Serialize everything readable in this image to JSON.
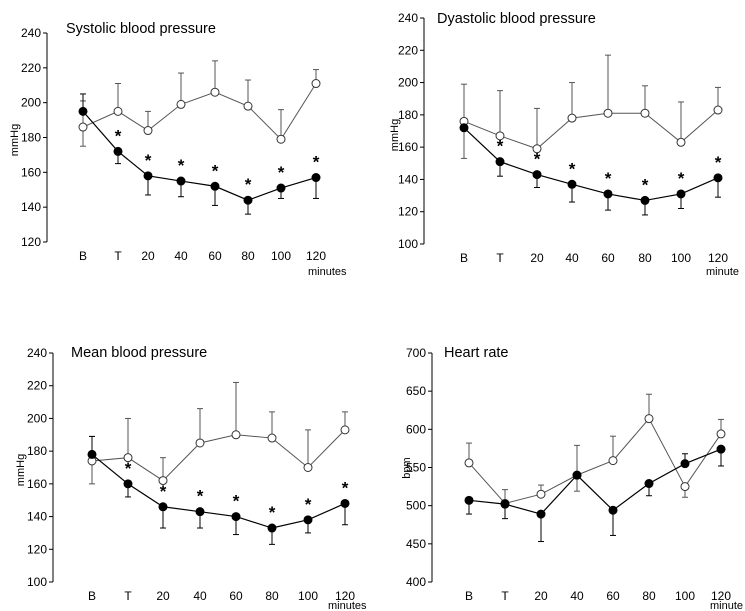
{
  "chart_data": [
    {
      "type": "line",
      "title": "Systolic blood pressure",
      "ylabel": "mmHg",
      "x_unit": "minutes",
      "categories": [
        "B",
        "T",
        "20",
        "40",
        "60",
        "80",
        "100",
        "120"
      ],
      "ylim": [
        120,
        240
      ],
      "yticks": [
        120,
        140,
        160,
        180,
        200,
        220,
        240
      ],
      "series": [
        {
          "marker": "open",
          "values": [
            186,
            195,
            184,
            199,
            206,
            198,
            179,
            211
          ],
          "err_up": [
            201,
            211,
            195,
            217,
            224,
            213,
            196,
            219
          ],
          "err_down": [
            175,
            null,
            null,
            null,
            null,
            null,
            null,
            null
          ]
        },
        {
          "marker": "filled",
          "values": [
            195,
            172,
            158,
            155,
            152,
            144,
            151,
            157
          ],
          "err_up": [
            205,
            null,
            null,
            null,
            null,
            null,
            null,
            null
          ],
          "err_down": [
            null,
            165,
            147,
            146,
            141,
            136,
            145,
            145
          ]
        }
      ],
      "significance": [
        "",
        "*",
        "*",
        "*",
        "*",
        "*",
        "*",
        "*"
      ]
    },
    {
      "type": "line",
      "title": "Dyastolic blood pressure",
      "ylabel": "mmHg",
      "x_unit": "minute",
      "categories": [
        "B",
        "T",
        "20",
        "40",
        "60",
        "80",
        "100",
        "120"
      ],
      "ylim": [
        100,
        240
      ],
      "yticks": [
        100,
        120,
        140,
        160,
        180,
        200,
        220,
        240
      ],
      "series": [
        {
          "marker": "open",
          "values": [
            176,
            167,
            159,
            178,
            181,
            181,
            163,
            183
          ],
          "err_up": [
            199,
            195,
            184,
            200,
            217,
            198,
            188,
            197
          ],
          "err_down": [
            153,
            null,
            null,
            null,
            null,
            null,
            null,
            null
          ]
        },
        {
          "marker": "filled",
          "values": [
            172,
            151,
            143,
            137,
            131,
            127,
            131,
            141
          ],
          "err_up": [
            null,
            null,
            null,
            null,
            null,
            null,
            null,
            null
          ],
          "err_down": [
            null,
            142,
            135,
            126,
            121,
            118,
            122,
            129
          ]
        }
      ],
      "significance": [
        "",
        "*",
        "*",
        "*",
        "*",
        "*",
        "*",
        "*"
      ]
    },
    {
      "type": "line",
      "title": "Mean blood pressure",
      "ylabel": "mmHg",
      "x_unit": "minutes",
      "categories": [
        "B",
        "T",
        "20",
        "40",
        "60",
        "80",
        "100",
        "120"
      ],
      "ylim": [
        100,
        240
      ],
      "yticks": [
        100,
        120,
        140,
        160,
        180,
        200,
        220,
        240
      ],
      "series": [
        {
          "marker": "open",
          "values": [
            174,
            176,
            162,
            185,
            190,
            188,
            170,
            193
          ],
          "err_up": [
            189,
            200,
            176,
            206,
            222,
            204,
            193,
            204
          ],
          "err_down": [
            160,
            null,
            null,
            null,
            null,
            null,
            null,
            null
          ]
        },
        {
          "marker": "filled",
          "values": [
            178,
            160,
            146,
            143,
            140,
            133,
            138,
            148
          ],
          "err_up": [
            189,
            null,
            null,
            null,
            null,
            null,
            null,
            null
          ],
          "err_down": [
            null,
            152,
            133,
            133,
            129,
            123,
            130,
            135
          ]
        }
      ],
      "significance": [
        "",
        "*",
        "*",
        "*",
        "*",
        "*",
        "*",
        "*"
      ]
    },
    {
      "type": "line",
      "title": "Heart rate",
      "ylabel": "bpm",
      "x_unit": "minute",
      "categories": [
        "B",
        "T",
        "20",
        "40",
        "60",
        "80",
        "100",
        "120"
      ],
      "ylim": [
        400,
        700
      ],
      "yticks": [
        400,
        450,
        500,
        550,
        600,
        650,
        700
      ],
      "series": [
        {
          "marker": "open",
          "values": [
            556,
            503,
            515,
            540,
            559,
            614,
            525,
            594
          ],
          "err_up": [
            582,
            521,
            527,
            579,
            591,
            646,
            null,
            613
          ],
          "err_down": [
            null,
            null,
            null,
            519,
            null,
            null,
            511,
            null
          ]
        },
        {
          "marker": "filled",
          "values": [
            507,
            502,
            489,
            540,
            494,
            529,
            555,
            574
          ],
          "err_up": [
            null,
            null,
            null,
            null,
            null,
            null,
            568,
            null
          ],
          "err_down": [
            489,
            483,
            453,
            null,
            461,
            513,
            null,
            552
          ]
        }
      ],
      "significance": [
        "",
        "",
        "",
        "",
        "",
        "",
        "",
        ""
      ]
    }
  ]
}
